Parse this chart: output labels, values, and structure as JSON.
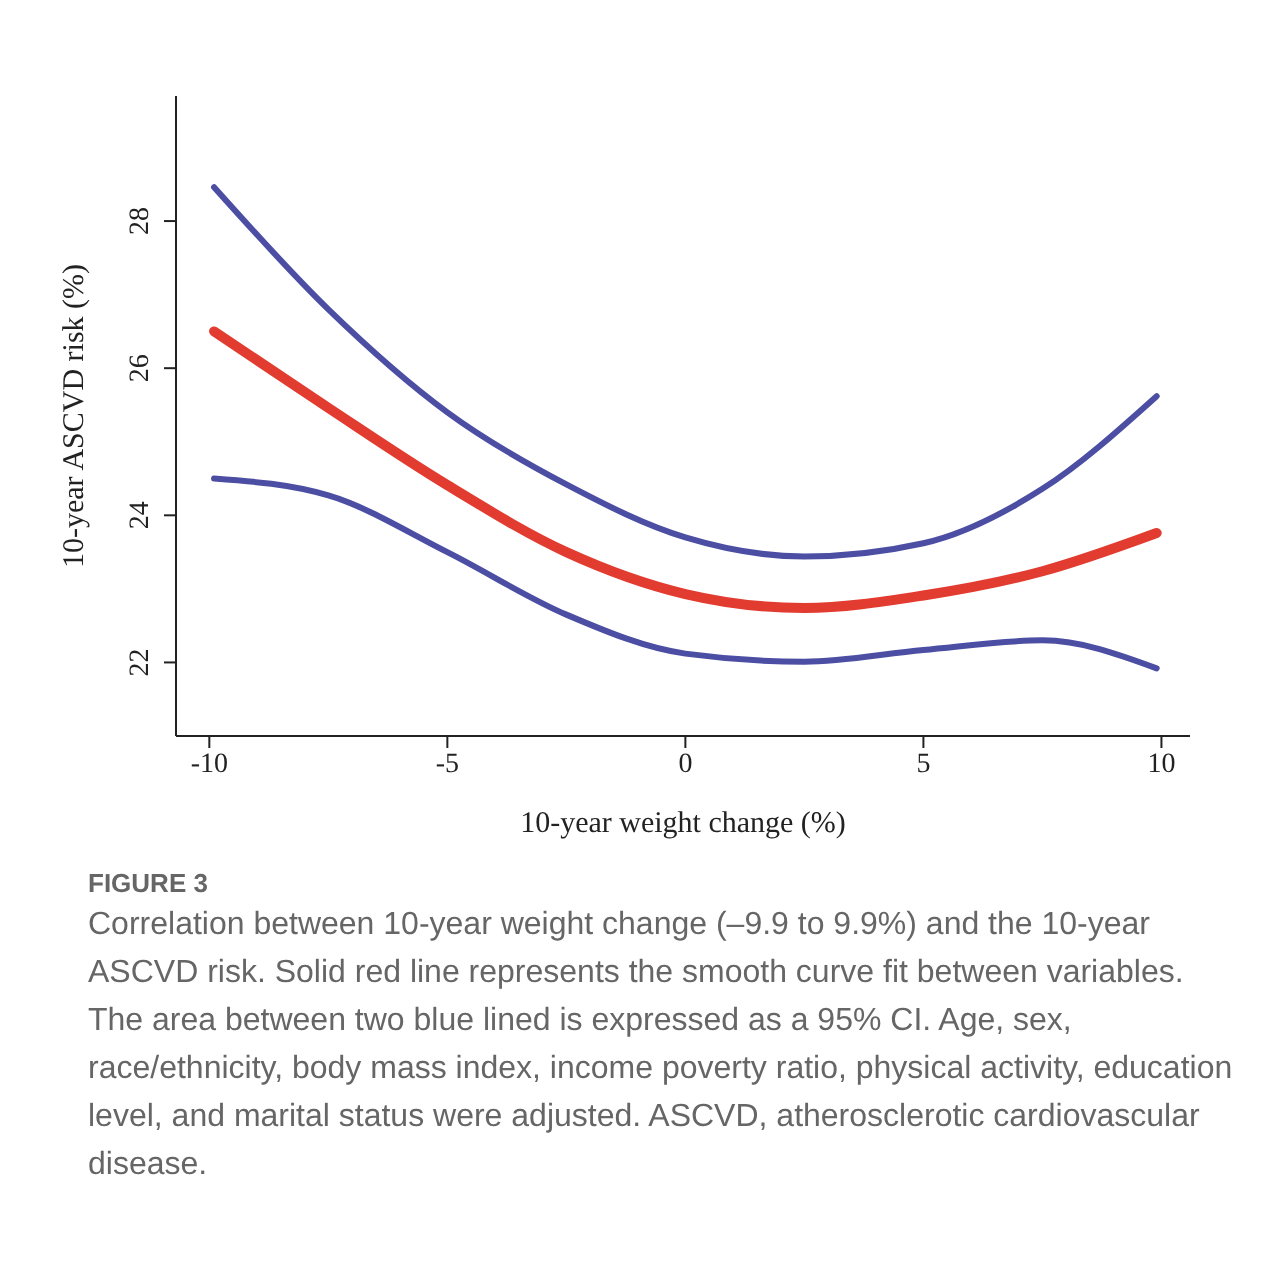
{
  "chart_data": {
    "type": "line",
    "xlabel": "10-year weight change (%)",
    "ylabel": "10-year ASCVD risk (%)",
    "xlim": [
      -10.7,
      10.6
    ],
    "xticks": [
      -10,
      -5,
      0,
      5,
      10
    ],
    "ylim": [
      21,
      29.7
    ],
    "yticks": [
      22,
      24,
      26,
      28
    ],
    "grid": false,
    "legend": false,
    "marker": "none",
    "line_style": "solid",
    "series": [
      {
        "color": "#4b4ea3",
        "x": [
          -9.9,
          -7.5,
          -5,
          -2.5,
          0,
          2.5,
          5,
          7.5,
          9.9
        ],
        "values": [
          28.46,
          26.8,
          25.4,
          24.42,
          23.7,
          23.44,
          23.62,
          24.36,
          25.62
        ]
      },
      {
        "color": "#4b4ea3",
        "x": [
          -9.9,
          -7.5,
          -5,
          -2.5,
          0,
          2.5,
          5,
          7.5,
          9.9
        ],
        "values": [
          24.5,
          24.27,
          23.5,
          22.65,
          22.12,
          22.01,
          22.17,
          22.3,
          21.92
        ]
      },
      {
        "color": "#e23b30",
        "x": [
          -9.9,
          -7.5,
          -5,
          -2.5,
          0,
          2.5,
          5,
          7.5,
          9.9
        ],
        "values": [
          26.5,
          25.46,
          24.41,
          23.5,
          22.93,
          22.74,
          22.91,
          23.24,
          23.76
        ]
      }
    ],
    "annotations": [
      "FIGURE 3",
      "Correlation between 10-year weight change (–9.9 to 9.9%) and the 10-year ASCVD risk. Solid red line represents the smooth curve fit between variables. The area between two blue lined is expressed as a 95% CI. Age, sex, race/ethnicity, body mass index, income poverty ratio, physical activity, education level, and marital status were adjusted. ASCVD, atherosclerotic cardiovascular disease."
    ]
  }
}
